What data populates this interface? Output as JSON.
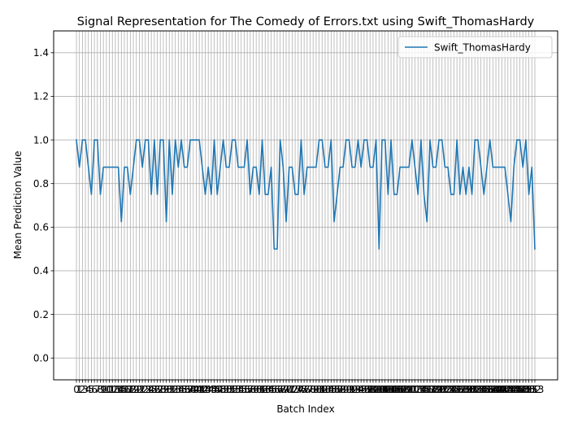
{
  "chart_data": {
    "type": "line",
    "title": "Signal Representation for The Comedy of Errors.txt using Swift_ThomasHardy",
    "xlabel": "Batch Index",
    "ylabel": "Mean Prediction Value",
    "xlim": [
      -7.6,
      160.6
    ],
    "ylim": [
      -0.1,
      1.5
    ],
    "yticks": [
      0.0,
      0.2,
      0.4,
      0.6,
      0.8,
      1.0,
      1.2,
      1.4
    ],
    "grid": true,
    "legend_position": "top-right",
    "series": [
      {
        "name": "Swift_ThomasHardy",
        "color": "#1f77b4",
        "x_start": 0,
        "values": [
          1.0,
          0.875,
          1.0,
          1.0,
          0.875,
          0.75,
          1.0,
          1.0,
          0.75,
          0.875,
          0.875,
          0.875,
          0.875,
          0.875,
          0.875,
          0.625,
          0.875,
          0.875,
          0.75,
          0.875,
          1.0,
          1.0,
          0.875,
          1.0,
          1.0,
          0.75,
          1.0,
          0.75,
          1.0,
          1.0,
          0.625,
          1.0,
          0.75,
          1.0,
          0.875,
          1.0,
          0.875,
          0.875,
          1.0,
          1.0,
          1.0,
          1.0,
          0.875,
          0.75,
          0.875,
          0.75,
          1.0,
          0.75,
          0.875,
          1.0,
          0.875,
          0.875,
          1.0,
          1.0,
          0.875,
          0.875,
          0.875,
          1.0,
          0.75,
          0.875,
          0.875,
          0.75,
          1.0,
          0.75,
          0.75,
          0.875,
          0.5,
          0.5,
          1.0,
          0.875,
          0.625,
          0.875,
          0.875,
          0.75,
          0.75,
          1.0,
          0.75,
          0.875,
          0.875,
          0.875,
          0.875,
          1.0,
          1.0,
          0.875,
          0.875,
          1.0,
          0.625,
          0.75,
          0.875,
          0.875,
          1.0,
          1.0,
          0.875,
          0.875,
          1.0,
          0.875,
          1.0,
          1.0,
          0.875,
          0.875,
          1.0,
          0.5,
          1.0,
          1.0,
          0.75,
          1.0,
          0.75,
          0.75,
          0.875,
          0.875,
          0.875,
          0.875,
          1.0,
          0.875,
          0.75,
          1.0,
          0.75,
          0.625,
          1.0,
          0.875,
          0.875,
          1.0,
          1.0,
          0.875,
          0.875,
          0.75,
          0.75,
          1.0,
          0.75,
          0.875,
          0.75,
          0.875,
          0.75,
          1.0,
          1.0,
          0.875,
          0.75,
          0.875,
          1.0,
          0.875,
          0.875,
          0.875,
          0.875,
          0.875,
          0.75,
          0.625,
          0.875,
          1.0,
          1.0,
          0.875,
          1.0,
          0.75,
          0.875,
          0.5
        ]
      }
    ]
  }
}
